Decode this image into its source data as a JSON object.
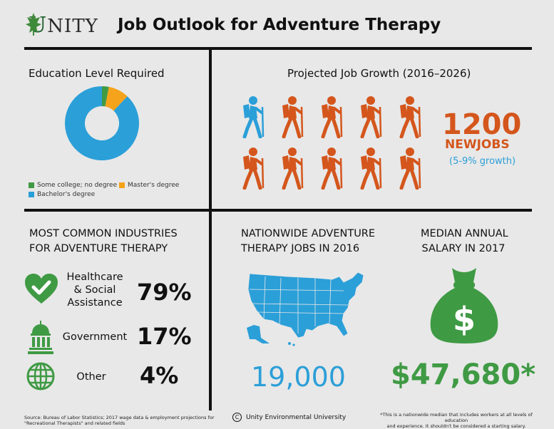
{
  "header": {
    "logo_text": "NITY",
    "logo_initial": "U",
    "title": "Job Outlook for Adventure Therapy"
  },
  "education": {
    "title": "Education Level Required",
    "legend": [
      {
        "label": "Some college; no degree",
        "color": "#3f9a44",
        "value": 3
      },
      {
        "label": "Master's degree",
        "color": "#f5a31b",
        "value": 9
      },
      {
        "label": "Bachelor's degree",
        "color": "#2b9fd8",
        "value": 88
      }
    ]
  },
  "growth": {
    "title": "Projected Job Growth (2016–2026)",
    "number": "1200",
    "unit": "NEWJOBS",
    "range": "(5-9% growth)",
    "hiker_colors": [
      "#2b9fd8",
      "#d4561c"
    ]
  },
  "industries": {
    "title_line1": "MOST COMMON INDUSTRIES",
    "title_line2": "FOR ADVENTURE THERAPY",
    "items": [
      {
        "label_lines": [
          "Healthcare",
          "& Social",
          "Assistance"
        ],
        "pct": "79%",
        "icon": "heart-check-icon"
      },
      {
        "label_lines": [
          "Government"
        ],
        "pct": "17%",
        "icon": "capitol-building-icon"
      },
      {
        "label_lines": [
          "Other"
        ],
        "pct": "4%",
        "icon": "globe-icon"
      }
    ]
  },
  "jobs": {
    "title_line1": "NATIONWIDE ADVENTURE",
    "title_line2": "THERAPY JOBS IN 2016",
    "value": "19,000"
  },
  "salary": {
    "title_line1": "MEDIAN ANNUAL",
    "title_line2": "SALARY IN 2017",
    "value": "$47,680*"
  },
  "footer": {
    "source_line1": "Source: Bureau of Labor Statistics; 2017 wage data & employment projections for",
    "source_line2": "\"Recreational Therapists\" and related fields",
    "copyright": "Unity Environmental University",
    "note_line1": "*This is a nationwide median that includes workers at all levels of education",
    "note_line2": "and experience. It shouldn't be considered a starting salary."
  }
}
